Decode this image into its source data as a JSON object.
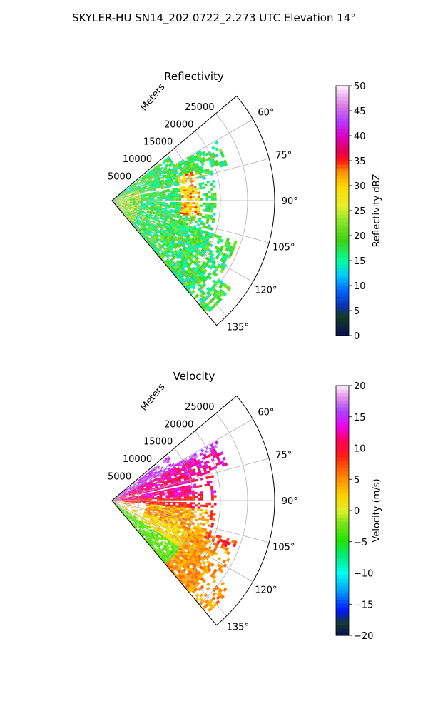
{
  "suptitle": "SKYLER-HU  SN14_202  0722_2.273 UTC Elevation 14°",
  "chart_data": [
    {
      "type": "heatmap",
      "title": "Reflectivity",
      "projection": "polar sector",
      "theta_range_deg": [
        50,
        140
      ],
      "r_range_m": [
        0,
        30000
      ],
      "r_axis_label": "Meters",
      "r_ticks": [
        5000,
        10000,
        15000,
        20000,
        25000
      ],
      "r_tick_labels": [
        "5000",
        "10000",
        "15000",
        "20000",
        "25000"
      ],
      "theta_ticks": [
        60,
        75,
        90,
        105,
        120,
        135
      ],
      "theta_tick_labels": [
        "60°",
        "75°",
        "90°",
        "105°",
        "120°",
        "135°"
      ],
      "grid": true,
      "colorbar": {
        "label": "Reflectivity dBZ",
        "min": 0,
        "max": 50,
        "ticks": [
          0,
          5,
          10,
          15,
          20,
          25,
          30,
          35,
          40,
          45,
          50
        ],
        "tick_labels": [
          "0",
          "5",
          "10",
          "15",
          "20",
          "25",
          "30",
          "35",
          "40",
          "45",
          "50"
        ]
      },
      "field_summary": "mostly 15-25 dBZ returns, bands of 30-40 dBZ near 15000 m and near the radar"
    },
    {
      "type": "heatmap",
      "title": "Velocity",
      "projection": "polar sector",
      "theta_range_deg": [
        50,
        140
      ],
      "r_range_m": [
        0,
        30000
      ],
      "r_axis_label": "Meters",
      "r_ticks": [
        5000,
        10000,
        15000,
        20000,
        25000
      ],
      "r_tick_labels": [
        "5000",
        "10000",
        "15000",
        "20000",
        "25000"
      ],
      "theta_ticks": [
        60,
        75,
        90,
        105,
        120,
        135
      ],
      "theta_tick_labels": [
        "60°",
        "75°",
        "90°",
        "105°",
        "120°",
        "135°"
      ],
      "grid": true,
      "colorbar": {
        "label": "Velocity (m/s)",
        "min": -20,
        "max": 20,
        "ticks": [
          -20,
          -15,
          -10,
          -5,
          0,
          5,
          10,
          15,
          20
        ],
        "tick_labels": [
          "−20",
          "−15",
          "−10",
          "−5",
          "0",
          "5",
          "10",
          "15",
          "20"
        ]
      },
      "field_summary": "positive 10-15 m/s at azimuth 60-90°, 0-10 m/s at azimuth 95-135°"
    }
  ]
}
